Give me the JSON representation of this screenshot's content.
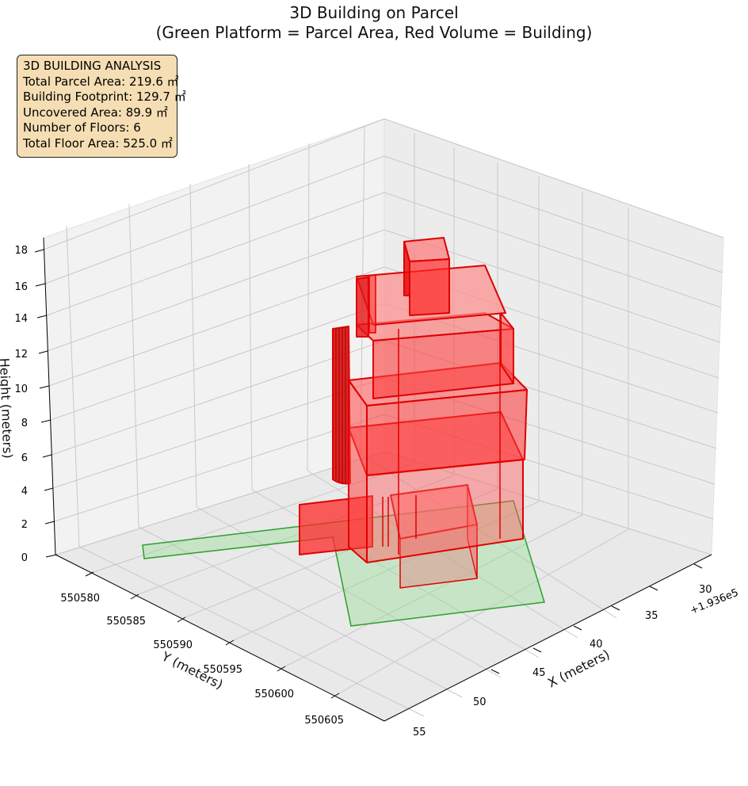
{
  "chart_data": {
    "type": "3d-volume",
    "title": "3D Building on Parcel",
    "subtitle": "(Green Platform = Parcel Area, Red Volume = Building)",
    "xlabel": "X (meters)",
    "ylabel": "Y (meters)",
    "zlabel": "Height (meters)",
    "x_offset_label": "+1.936e5",
    "x_ticks": [
      "30",
      "35",
      "40",
      "45",
      "50",
      "55"
    ],
    "y_ticks": [
      "550580",
      "550585",
      "550590",
      "550595",
      "550600",
      "550605"
    ],
    "z_ticks": [
      "0",
      "2",
      "4",
      "6",
      "8",
      "10",
      "12",
      "14",
      "16",
      "18"
    ],
    "xlim": [
      193626,
      193656
    ],
    "ylim": [
      550576,
      550608
    ],
    "zlim": [
      0,
      18
    ],
    "grid": true,
    "parcel_color": "#2ca02c",
    "building_color": "#ff0000"
  },
  "info": {
    "heading": "3D BUILDING ANALYSIS",
    "lines": [
      "Total Parcel Area: 219.6 ㎡",
      "Building Footprint: 129.7 ㎡",
      "Uncovered Area: 89.9 ㎡",
      "Number of Floors: 6",
      "Total Floor Area: 525.0 ㎡"
    ]
  }
}
